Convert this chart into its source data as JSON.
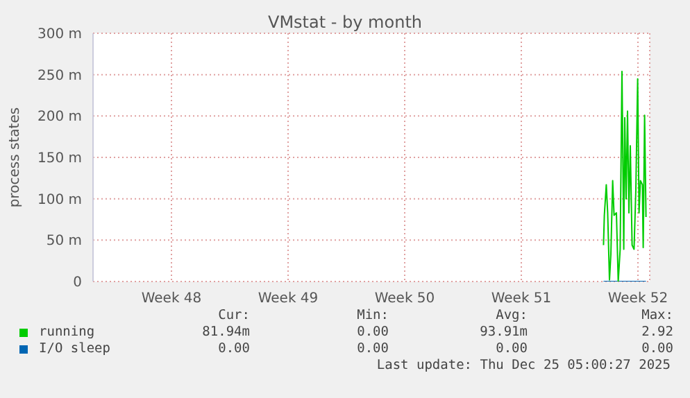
{
  "chart_data": {
    "type": "line",
    "title": "VMstat - by month",
    "ylabel": "process states",
    "x": [
      "2025-12-22T10:24",
      "2025-12-22T11:36",
      "2025-12-22T14:24",
      "2025-12-22T16:24",
      "2025-12-22T19:00",
      "2025-12-22T21:00",
      "2025-12-22T23:36",
      "2025-12-23T01:36",
      "2025-12-23T05:00",
      "2025-12-23T07:36",
      "2025-12-23T10:24",
      "2025-12-23T13:00",
      "2025-12-23T15:36",
      "2025-12-23T17:00",
      "2025-12-23T19:00",
      "2025-12-23T21:00",
      "2025-12-23T23:00",
      "2025-12-24T01:00",
      "2025-12-24T03:36",
      "2025-12-24T06:24",
      "2025-12-24T09:00",
      "2025-12-24T11:36",
      "2025-12-24T13:36",
      "2025-12-24T15:36",
      "2025-12-24T18:24",
      "2025-12-24T19:36",
      "2025-12-24T21:36",
      "2025-12-24T23:36"
    ],
    "series": [
      {
        "name": "running",
        "color": "#00cc00",
        "values": [
          44,
          80,
          117,
          83,
          2,
          33,
          122,
          80,
          83,
          0,
          39,
          254,
          39,
          198,
          100,
          206,
          83,
          164,
          44,
          39,
          111,
          245,
          83,
          122,
          117,
          41,
          201,
          78
        ]
      },
      {
        "name": "I/O sleep",
        "color": "#0066b3",
        "values": [
          0,
          0,
          0,
          0,
          0,
          0,
          0,
          0,
          0,
          0,
          0,
          0,
          0,
          0,
          0,
          0,
          0,
          0,
          0,
          0,
          0,
          0,
          0,
          0,
          0,
          0,
          0,
          0
        ]
      }
    ],
    "xlim": [
      "2025-11-21T19:00",
      "2025-12-25T05:00"
    ],
    "xticks": [
      {
        "value": "2025-11-26T12:00",
        "label": "Week 48"
      },
      {
        "value": "2025-12-03T12:00",
        "label": "Week 49"
      },
      {
        "value": "2025-12-10T12:00",
        "label": "Week 50"
      },
      {
        "value": "2025-12-17T12:00",
        "label": "Week 51"
      },
      {
        "value": "2025-12-24T12:00",
        "label": "Week 52"
      }
    ],
    "ylim": [
      0,
      300
    ],
    "yticks": [
      0,
      {
        "value": 50,
        "label": "50 m"
      },
      {
        "value": 100,
        "label": "100 m"
      },
      {
        "value": 150,
        "label": "150 m"
      },
      {
        "value": 200,
        "label": "200 m"
      },
      {
        "value": 250,
        "label": "250 m"
      },
      {
        "value": 300,
        "label": "300 m"
      }
    ],
    "grid": true,
    "legend": "bottom",
    "annotations": [
      "Cur:",
      "Min:",
      "Avg:",
      "Max:",
      "81.94m",
      "0.00",
      "93.91m",
      "2.92",
      "0.00",
      "0.00",
      "0.00",
      "0.00",
      "Last update: Thu Dec 25 05:00:27 2025"
    ]
  }
}
